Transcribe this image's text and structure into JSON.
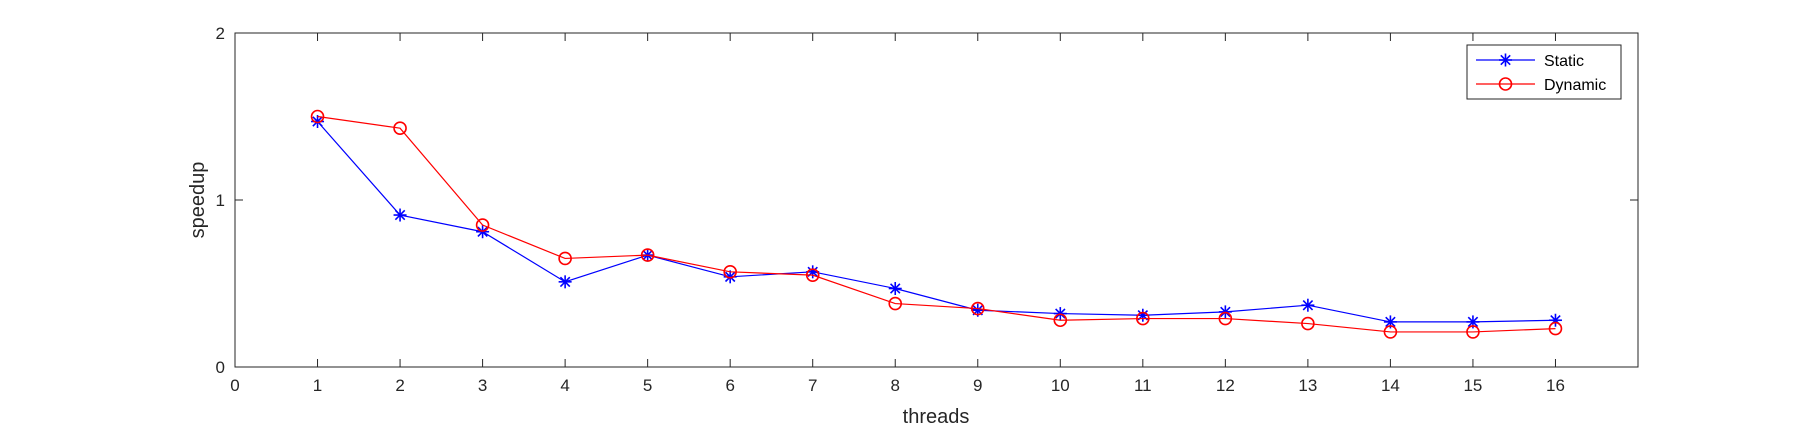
{
  "chart_data": {
    "type": "line",
    "title": "",
    "xlabel": "threads",
    "ylabel": "speedup",
    "xlim": [
      0,
      17
    ],
    "ylim": [
      0,
      2
    ],
    "xticks": [
      0,
      1,
      2,
      3,
      4,
      5,
      6,
      7,
      8,
      9,
      10,
      11,
      12,
      13,
      14,
      15,
      16
    ],
    "yticks": [
      0,
      1,
      2
    ],
    "grid": false,
    "legend_position": "top-right",
    "x": [
      1,
      2,
      3,
      4,
      5,
      6,
      7,
      8,
      9,
      10,
      11,
      12,
      13,
      14,
      15,
      16
    ],
    "series": [
      {
        "name": "Static",
        "color": "#0000ff",
        "marker": "asterisk",
        "values": [
          1.47,
          0.91,
          0.81,
          0.51,
          0.67,
          0.54,
          0.57,
          0.47,
          0.34,
          0.32,
          0.31,
          0.33,
          0.37,
          0.27,
          0.27,
          0.28
        ]
      },
      {
        "name": "Dynamic",
        "color": "#ff0000",
        "marker": "circle",
        "values": [
          1.5,
          1.43,
          0.85,
          0.65,
          0.67,
          0.57,
          0.55,
          0.38,
          0.35,
          0.28,
          0.29,
          0.29,
          0.26,
          0.21,
          0.21,
          0.23
        ]
      }
    ]
  }
}
